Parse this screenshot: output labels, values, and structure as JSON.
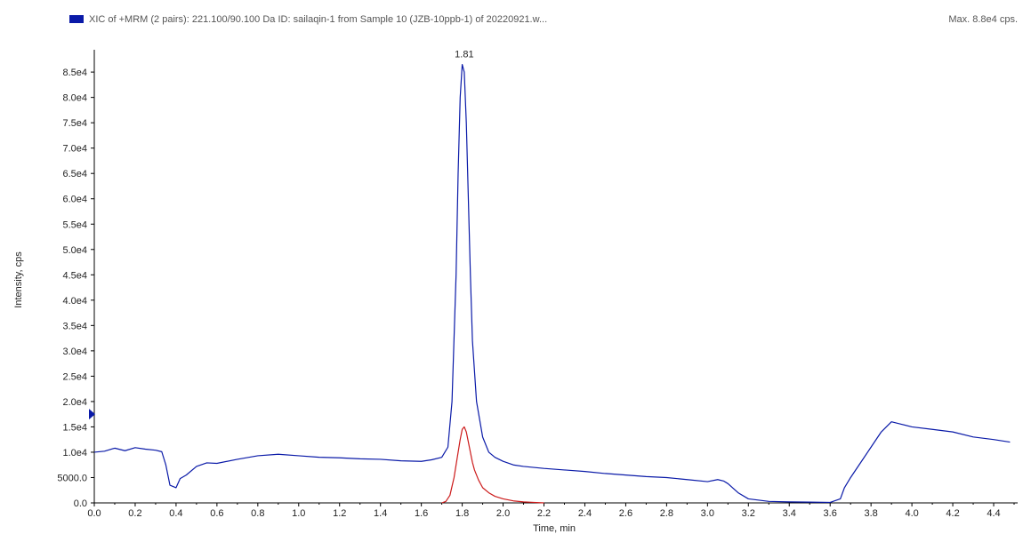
{
  "header": {
    "title": "XIC of +MRM (2 pairs): 221.100/90.100 Da ID: sailaqin-1 from Sample 10 (JZB-10ppb-1) of 20220921.w...",
    "max_label": "Max. 8.8e4 cps."
  },
  "colors": {
    "primary_trace": "#0a1aa8",
    "secondary_trace": "#cc1a1a",
    "axis": "#000000"
  },
  "chart_data": {
    "type": "line",
    "xlabel": "Time, min",
    "ylabel": "Intensity, cps",
    "xlim": [
      0.0,
      4.5
    ],
    "ylim": [
      0,
      88000
    ],
    "x_ticks": [
      "0.0",
      "0.2",
      "0.4",
      "0.6",
      "0.8",
      "1.0",
      "1.2",
      "1.4",
      "1.6",
      "1.8",
      "2.0",
      "2.2",
      "2.4",
      "2.6",
      "2.8",
      "3.0",
      "3.2",
      "3.4",
      "3.6",
      "3.8",
      "4.0",
      "4.2",
      "4.4"
    ],
    "y_ticks": [
      "0.0",
      "5000.0",
      "1.0e4",
      "1.5e4",
      "2.0e4",
      "2.5e4",
      "3.0e4",
      "3.5e4",
      "4.0e4",
      "4.5e4",
      "5.0e4",
      "5.5e4",
      "6.0e4",
      "6.5e4",
      "7.0e4",
      "7.5e4",
      "8.0e4",
      "8.5e4"
    ],
    "peak_label": "1.81",
    "peak_x": 1.81,
    "peak_y": 86500,
    "grid": false,
    "series": [
      {
        "color": "#0a1aa8",
        "x": [
          0.0,
          0.05,
          0.1,
          0.15,
          0.2,
          0.25,
          0.3,
          0.33,
          0.35,
          0.37,
          0.4,
          0.42,
          0.45,
          0.5,
          0.55,
          0.6,
          0.7,
          0.8,
          0.9,
          1.0,
          1.1,
          1.2,
          1.3,
          1.4,
          1.5,
          1.6,
          1.65,
          1.7,
          1.73,
          1.75,
          1.77,
          1.78,
          1.79,
          1.8,
          1.81,
          1.82,
          1.83,
          1.84,
          1.85,
          1.87,
          1.9,
          1.93,
          1.96,
          2.0,
          2.05,
          2.1,
          2.2,
          2.3,
          2.4,
          2.5,
          2.6,
          2.7,
          2.8,
          2.9,
          3.0,
          3.05,
          3.08,
          3.1,
          3.15,
          3.2,
          3.3,
          3.4,
          3.5,
          3.6,
          3.65,
          3.67,
          3.7,
          3.75,
          3.8,
          3.85,
          3.9,
          3.95,
          4.0,
          4.1,
          4.2,
          4.3,
          4.4,
          4.48
        ],
        "y": [
          10000,
          10200,
          10800,
          10300,
          10900,
          10600,
          10400,
          10100,
          7500,
          3500,
          3000,
          4800,
          5500,
          7200,
          7900,
          7800,
          8600,
          9300,
          9600,
          9300,
          9000,
          8900,
          8700,
          8600,
          8300,
          8200,
          8500,
          9000,
          11000,
          20000,
          45000,
          65000,
          80000,
          86500,
          85000,
          75000,
          60000,
          45000,
          32000,
          20000,
          13000,
          10000,
          9000,
          8200,
          7500,
          7200,
          6800,
          6500,
          6200,
          5800,
          5500,
          5200,
          5000,
          4600,
          4200,
          4600,
          4300,
          3800,
          2000,
          800,
          300,
          200,
          150,
          100,
          800,
          3000,
          5000,
          8000,
          11000,
          14000,
          16000,
          15500,
          15000,
          14500,
          14000,
          13000,
          12500,
          12000
        ]
      },
      {
        "color": "#cc1a1a",
        "x": [
          1.7,
          1.72,
          1.74,
          1.76,
          1.78,
          1.79,
          1.8,
          1.81,
          1.82,
          1.83,
          1.84,
          1.85,
          1.86,
          1.88,
          1.9,
          1.93,
          1.96,
          2.0,
          2.05,
          2.1,
          2.15,
          2.2
        ],
        "y": [
          0,
          300,
          1500,
          5000,
          10000,
          12500,
          14500,
          15000,
          14000,
          12000,
          10000,
          8000,
          6500,
          4500,
          3000,
          2000,
          1300,
          800,
          400,
          200,
          100,
          0
        ]
      }
    ]
  }
}
